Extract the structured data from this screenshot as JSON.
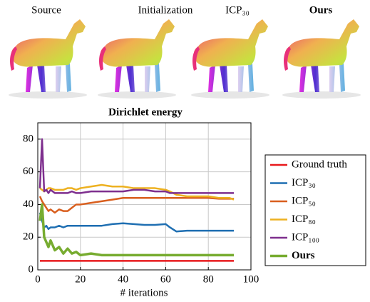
{
  "panels": [
    {
      "label": "Source"
    },
    {
      "label": "Initialization"
    },
    {
      "label": "ICP₃₀"
    },
    {
      "label": "Ours"
    }
  ],
  "chart_data": {
    "type": "line",
    "title": "Dirichlet energy",
    "x_label": "# iterations",
    "x": [
      1,
      2,
      3,
      4,
      5,
      6,
      8,
      10,
      12,
      14,
      16,
      18,
      20,
      25,
      30,
      35,
      40,
      45,
      50,
      55,
      60,
      62,
      65,
      70,
      75,
      80,
      85,
      90,
      92
    ],
    "xlim": [
      0,
      100
    ],
    "xticks": [
      0,
      20,
      40,
      60,
      80,
      100
    ],
    "ylim": [
      0,
      90
    ],
    "yticks": [
      0,
      20,
      40,
      60,
      80
    ],
    "grid": true,
    "legend": "right",
    "series": [
      {
        "name": "Ground truth",
        "color": "#e8191c",
        "values": [
          5.5,
          5.5,
          5.5,
          5.5,
          5.5,
          5.5,
          5.5,
          5.5,
          5.5,
          5.5,
          5.5,
          5.5,
          5.5,
          5.5,
          5.5,
          5.5,
          5.5,
          5.5,
          5.5,
          5.5,
          5.5,
          5.5,
          5.5,
          5.5,
          5.5,
          5.5,
          5.5,
          5.5,
          5.5
        ]
      },
      {
        "name": "ICP₃₀",
        "color": "#1f6fb2",
        "values": [
          35,
          30,
          26,
          27,
          25,
          26,
          26,
          27,
          26,
          27,
          27,
          27,
          27,
          27,
          27,
          28,
          28.5,
          28,
          27.5,
          27.5,
          28,
          26,
          23.5,
          24,
          24,
          24,
          24,
          24,
          24
        ]
      },
      {
        "name": "ICP₅₀",
        "color": "#d95f1e",
        "values": [
          45,
          42,
          40,
          38,
          36,
          37,
          35,
          37,
          36,
          36,
          38,
          40,
          40,
          41,
          42,
          43,
          44,
          44,
          44,
          44,
          44,
          44,
          44,
          44,
          44,
          44,
          43.5,
          43.5,
          43.5
        ]
      },
      {
        "name": "ICP₈₀",
        "color": "#edb120",
        "values": [
          50,
          49,
          48,
          49,
          50,
          50,
          49,
          49,
          49,
          50,
          50,
          49,
          50,
          51,
          52,
          51,
          51,
          50,
          50,
          50,
          49,
          48,
          46,
          45,
          45,
          45,
          44,
          44,
          43
        ]
      },
      {
        "name": "ICP₁₀₀",
        "color": "#7e2f8e",
        "values": [
          50,
          80,
          48,
          49,
          47,
          49,
          47,
          47,
          47,
          47,
          48,
          47,
          47,
          48,
          48,
          48,
          48,
          49,
          49,
          48,
          48,
          47,
          47,
          47,
          47,
          47,
          47,
          47,
          47
        ]
      },
      {
        "name": "Ours",
        "color": "#77ac30",
        "values": [
          30,
          40,
          20,
          17,
          14,
          18,
          12,
          14,
          10,
          13,
          10,
          11,
          9,
          10,
          9,
          9,
          9,
          9,
          9,
          9,
          9,
          9,
          9,
          9,
          9,
          9,
          9,
          9,
          9
        ]
      }
    ]
  }
}
